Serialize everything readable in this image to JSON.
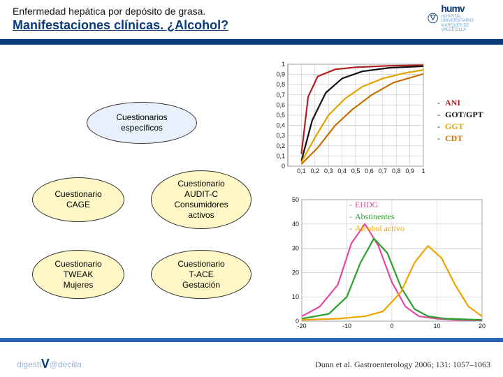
{
  "header": {
    "title": "Enfermedad hepática por depósito de grasa.",
    "subtitle": "Manifestaciones clínicas. ¿Alcohol?"
  },
  "logo": {
    "text": "humv",
    "subtext": "HOSPITAL UNIVERSITARIO MARQUÉS DE VALDECILLA"
  },
  "ovals": {
    "root": {
      "label": "Cuestionarios\nespecíficos"
    },
    "cage": {
      "label": "Cuestionario\nCAGE"
    },
    "audit": {
      "label": "Cuestionario\nAUDIT-C\nConsumidores\nactivos"
    },
    "tweak": {
      "label": "Cuestionario\nTWEAK\nMujeres"
    },
    "tace": {
      "label": "Cuestionario\nT-ACE\nGestación"
    }
  },
  "top_chart": {
    "type": "line",
    "xlim": [
      0,
      1
    ],
    "ylim": [
      0,
      1
    ],
    "xticks": [
      0.1,
      0.2,
      0.3,
      0.4,
      0.5,
      0.6,
      0.7,
      0.8,
      0.9,
      1
    ],
    "yticks": [
      0,
      0.1,
      0.2,
      0.3,
      0.4,
      0.5,
      0.6,
      0.7,
      0.8,
      0.9,
      1
    ],
    "background_color": "#ffffff",
    "grid_color": "#c4c4c4",
    "line_width": 2.2,
    "series": [
      {
        "name": "ANI",
        "color": "#b02020",
        "points": [
          [
            0.1,
            0.12
          ],
          [
            0.15,
            0.68
          ],
          [
            0.22,
            0.88
          ],
          [
            0.35,
            0.95
          ],
          [
            0.5,
            0.97
          ],
          [
            0.75,
            0.985
          ],
          [
            1.0,
            0.99
          ]
        ]
      },
      {
        "name": "GOT/GPT",
        "color": "#111111",
        "points": [
          [
            0.1,
            0.05
          ],
          [
            0.18,
            0.45
          ],
          [
            0.28,
            0.72
          ],
          [
            0.4,
            0.86
          ],
          [
            0.55,
            0.93
          ],
          [
            0.75,
            0.965
          ],
          [
            1.0,
            0.98
          ]
        ]
      },
      {
        "name": "GGT",
        "color": "#e3a400",
        "points": [
          [
            0.1,
            0.04
          ],
          [
            0.2,
            0.28
          ],
          [
            0.3,
            0.5
          ],
          [
            0.42,
            0.66
          ],
          [
            0.55,
            0.78
          ],
          [
            0.7,
            0.86
          ],
          [
            0.85,
            0.91
          ],
          [
            1.0,
            0.945
          ]
        ]
      },
      {
        "name": "CDT",
        "color": "#c86f00",
        "points": [
          [
            0.1,
            0.02
          ],
          [
            0.22,
            0.18
          ],
          [
            0.35,
            0.4
          ],
          [
            0.48,
            0.56
          ],
          [
            0.62,
            0.7
          ],
          [
            0.78,
            0.82
          ],
          [
            1.0,
            0.905
          ]
        ]
      }
    ],
    "legend": [
      {
        "label": "ANI",
        "color": "#b02020"
      },
      {
        "label": "GOT/GPT",
        "color": "#111111"
      },
      {
        "label": "GGT",
        "color": "#e3a400"
      },
      {
        "label": "CDT",
        "color": "#c86f00"
      }
    ]
  },
  "bottom_chart": {
    "type": "line",
    "xlim": [
      -20,
      20
    ],
    "ylim": [
      0,
      50
    ],
    "xticks": [
      -20,
      -10,
      0,
      10,
      20
    ],
    "yticks": [
      0,
      10,
      20,
      30,
      40,
      50
    ],
    "background_color": "#ffffff",
    "grid_color": "#c4c4c4",
    "line_width": 2.2,
    "series": [
      {
        "name": "EHDG",
        "color": "#e34a9f",
        "points": [
          [
            -20,
            2
          ],
          [
            -16,
            6
          ],
          [
            -12,
            15
          ],
          [
            -9,
            32
          ],
          [
            -6,
            40
          ],
          [
            -3,
            31
          ],
          [
            0,
            16
          ],
          [
            3,
            6
          ],
          [
            6,
            2
          ],
          [
            10,
            1
          ],
          [
            14,
            0.5
          ],
          [
            20,
            0.3
          ]
        ]
      },
      {
        "name": "Abstinentes",
        "color": "#2aa02a",
        "points": [
          [
            -20,
            1
          ],
          [
            -14,
            3
          ],
          [
            -10,
            10
          ],
          [
            -7,
            24
          ],
          [
            -4,
            34
          ],
          [
            -1,
            28
          ],
          [
            2,
            14
          ],
          [
            5,
            5
          ],
          [
            8,
            2
          ],
          [
            12,
            1
          ],
          [
            20,
            0.5
          ]
        ]
      },
      {
        "name": "Alcohol activo",
        "color": "#f2a300",
        "points": [
          [
            -20,
            0.5
          ],
          [
            -12,
            1
          ],
          [
            -6,
            2
          ],
          [
            -2,
            4
          ],
          [
            2,
            12
          ],
          [
            5,
            24
          ],
          [
            8,
            31
          ],
          [
            11,
            26
          ],
          [
            14,
            15
          ],
          [
            17,
            6
          ],
          [
            20,
            2
          ]
        ]
      }
    ],
    "legend": [
      {
        "label": "EHDG",
        "color": "#e34a9f"
      },
      {
        "label": "Abstinentes",
        "color": "#2aa02a"
      },
      {
        "label": "Alcohol activo",
        "color": "#f2a300"
      }
    ]
  },
  "citation": "Dunn et al. Gastroenterology 2006; 131: 1057–1063",
  "footer_logo": "digestiv@decilla"
}
